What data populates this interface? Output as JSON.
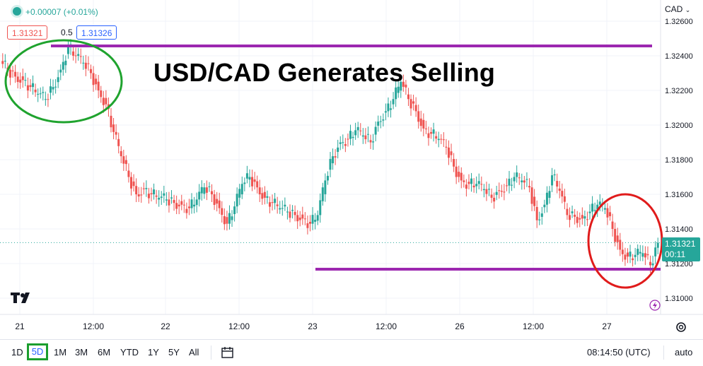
{
  "header": {
    "change_text": "+0.00007 (+0.01%)",
    "bid": "1.31321",
    "spread": "0.5",
    "ask": "1.31326",
    "currency": "CAD"
  },
  "headline": "USD/CAD Generates Selling",
  "last_price": {
    "value": "1.31321",
    "countdown": "00:11"
  },
  "toolbar": {
    "timeframes": [
      "1D",
      "5D",
      "1M",
      "3M",
      "6M",
      "YTD",
      "1Y",
      "5Y",
      "All"
    ],
    "active": "5D",
    "clock": "08:14:50 (UTC)",
    "scale_mode": "auto"
  },
  "colors": {
    "up": "#26a69a",
    "down": "#ef5350",
    "level": "#9c27b0",
    "highlight_green": "#1fa32e",
    "highlight_red": "#e01b1b"
  },
  "chart_data": {
    "type": "line",
    "title": "USD/CAD Generates Selling",
    "xlabel": "",
    "ylabel": "",
    "x_ticks": [
      "21",
      "12:00",
      "22",
      "12:00",
      "23",
      "12:00",
      "26",
      "12:00",
      "27"
    ],
    "y_ticks": [
      "1.32600",
      "1.32400",
      "1.32200",
      "1.32000",
      "1.31800",
      "1.31600",
      "1.31400",
      "1.31200",
      "1.31000"
    ],
    "ylim": [
      1.3095,
      1.3265
    ],
    "series": [
      {
        "values": [
          1.3237,
          1.3232,
          1.3228,
          1.3226,
          1.3222,
          1.3218,
          1.3215,
          1.3222,
          1.3232,
          1.3245,
          1.324,
          1.3236,
          1.323,
          1.322,
          1.3212,
          1.3196,
          1.3182,
          1.317,
          1.316,
          1.3163,
          1.316,
          1.3158,
          1.3157,
          1.3155,
          1.3154,
          1.3152,
          1.3157,
          1.3164,
          1.316,
          1.3152,
          1.3143,
          1.3153,
          1.3166,
          1.317,
          1.3164,
          1.3158,
          1.3155,
          1.3152,
          1.315,
          1.3148,
          1.3146,
          1.3143,
          1.3148,
          1.3168,
          1.3182,
          1.319,
          1.3192,
          1.3197,
          1.3194,
          1.319,
          1.3202,
          1.3208,
          1.3215,
          1.3225,
          1.3215,
          1.3208,
          1.3198,
          1.3195,
          1.3192,
          1.3187,
          1.3176,
          1.3168,
          1.3166,
          1.3166,
          1.3163,
          1.3158,
          1.3162,
          1.3165,
          1.317,
          1.3168,
          1.3164,
          1.3145,
          1.3154,
          1.3171,
          1.3162,
          1.3148,
          1.3147,
          1.3146,
          1.315,
          1.3154,
          1.3152,
          1.314,
          1.3128,
          1.3124,
          1.3125,
          1.3126,
          1.3119,
          1.3132
        ]
      }
    ],
    "levels": [
      1.3245,
      1.3116
    ],
    "annotations": [
      {
        "shape": "ellipse",
        "color": "green",
        "center": [
          0.0,
          1.323
        ],
        "note": "circled top-left swing"
      },
      {
        "shape": "ellipse",
        "color": "red",
        "center": [
          0.0,
          1.3132
        ],
        "note": "circled recent lows"
      }
    ],
    "grid": true,
    "legend": "none"
  }
}
